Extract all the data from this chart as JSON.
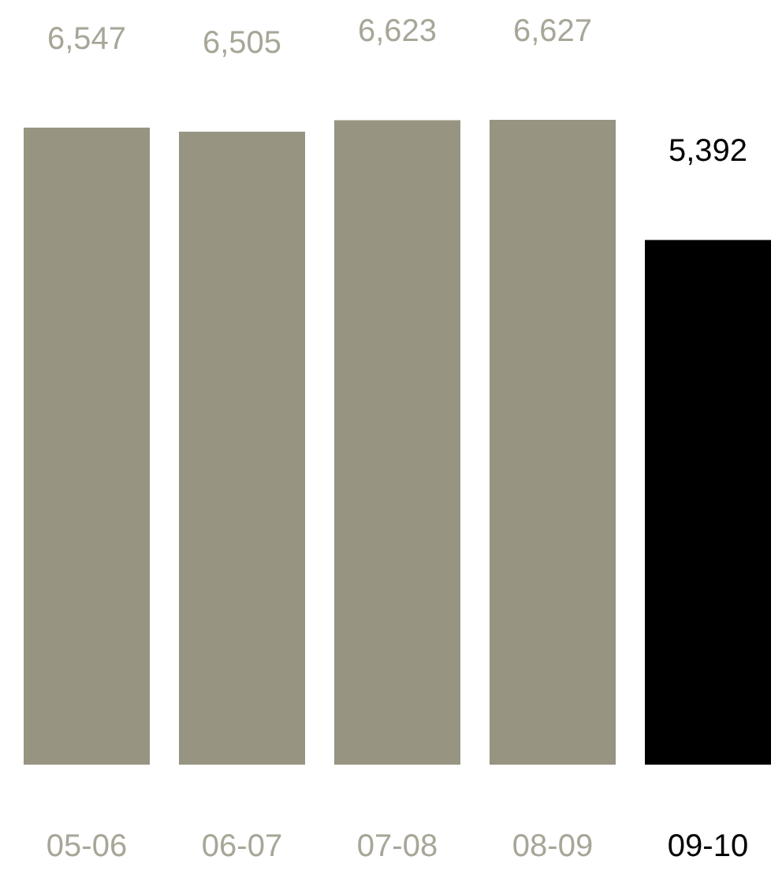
{
  "chart_data": {
    "type": "bar",
    "categories": [
      "05-06",
      "06-07",
      "07-08",
      "08-09",
      "09-10"
    ],
    "values": [
      6547,
      6505,
      6623,
      6627,
      5392
    ],
    "colors": [
      "#979482",
      "#979482",
      "#979482",
      "#979482",
      "#000000"
    ],
    "value_labels": [
      "6,547",
      "6,505",
      "6,623",
      "6,627",
      "5,392"
    ]
  }
}
